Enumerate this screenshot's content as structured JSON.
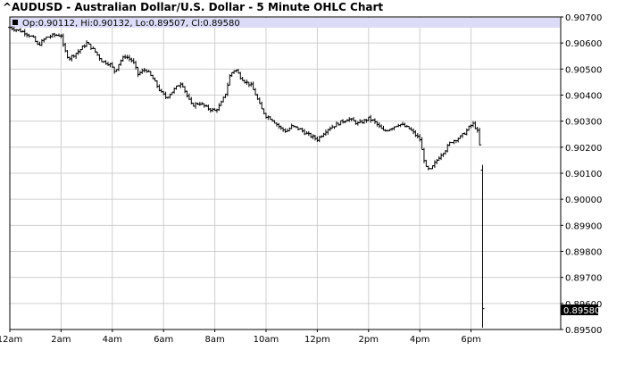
{
  "title": "^AUDUSD - Australian Dollar/U.S. Dollar - 5 Minute OHLC Chart",
  "info": "Op:0.90112, Hi:0.90132, Lo:0.89507, Cl:0.89580",
  "last_price": "0.89580",
  "colors": {
    "bar": "#000000",
    "grid": "#cfcfcf",
    "info_band": "#dcdcf8",
    "frame": "#000000"
  },
  "chart_data": {
    "type": "ohlc",
    "xlabel": "",
    "ylabel": "",
    "xlim": [
      0,
      21.5
    ],
    "ylim": [
      0.895,
      0.907
    ],
    "x_tick_labels": [
      {
        "x": 0,
        "label": "12am"
      },
      {
        "x": 2,
        "label": "2am"
      },
      {
        "x": 4,
        "label": "4am"
      },
      {
        "x": 6,
        "label": "6am"
      },
      {
        "x": 8,
        "label": "8am"
      },
      {
        "x": 10,
        "label": "10am"
      },
      {
        "x": 12,
        "label": "12pm"
      },
      {
        "x": 14,
        "label": "2pm"
      },
      {
        "x": 16,
        "label": "4pm"
      },
      {
        "x": 18,
        "label": "6pm"
      }
    ],
    "y_tick_labels": [
      "0.90700",
      "0.90600",
      "0.90500",
      "0.90400",
      "0.90300",
      "0.90200",
      "0.90100",
      "0.90000",
      "0.89900",
      "0.89800",
      "0.89700",
      "0.89600",
      "0.89500"
    ],
    "y_tick_values": [
      0.907,
      0.906,
      0.905,
      0.904,
      0.903,
      0.902,
      0.901,
      0.9,
      0.899,
      0.898,
      0.897,
      0.896,
      0.895
    ],
    "grid": true,
    "series_close_path": [
      [
        0.0,
        0.9066
      ],
      [
        0.3,
        0.9065
      ],
      [
        0.6,
        0.9064
      ],
      [
        0.9,
        0.9062
      ],
      [
        1.1,
        0.9059
      ],
      [
        1.4,
        0.9062
      ],
      [
        1.7,
        0.9063
      ],
      [
        2.0,
        0.9063
      ],
      [
        2.1,
        0.9058
      ],
      [
        2.3,
        0.9054
      ],
      [
        2.7,
        0.9057
      ],
      [
        3.0,
        0.906
      ],
      [
        3.3,
        0.9057
      ],
      [
        3.6,
        0.9053
      ],
      [
        3.9,
        0.9052
      ],
      [
        4.1,
        0.9049
      ],
      [
        4.3,
        0.9053
      ],
      [
        4.5,
        0.9055
      ],
      [
        4.8,
        0.9053
      ],
      [
        5.0,
        0.9048
      ],
      [
        5.3,
        0.905
      ],
      [
        5.6,
        0.9046
      ],
      [
        5.9,
        0.9041
      ],
      [
        6.1,
        0.9039
      ],
      [
        6.4,
        0.9042
      ],
      [
        6.7,
        0.9045
      ],
      [
        6.9,
        0.904
      ],
      [
        7.1,
        0.9036
      ],
      [
        7.4,
        0.9037
      ],
      [
        7.7,
        0.9035
      ],
      [
        8.0,
        0.9034
      ],
      [
        8.2,
        0.9036
      ],
      [
        8.4,
        0.904
      ],
      [
        8.6,
        0.9048
      ],
      [
        8.8,
        0.905
      ],
      [
        9.0,
        0.9047
      ],
      [
        9.2,
        0.9045
      ],
      [
        9.4,
        0.9044
      ],
      [
        9.6,
        0.904
      ],
      [
        9.8,
        0.9035
      ],
      [
        10.0,
        0.9032
      ],
      [
        10.2,
        0.9031
      ],
      [
        10.4,
        0.9029
      ],
      [
        10.6,
        0.9027
      ],
      [
        10.8,
        0.9026
      ],
      [
        11.0,
        0.9028
      ],
      [
        11.3,
        0.9027
      ],
      [
        11.6,
        0.9025
      ],
      [
        11.8,
        0.9024
      ],
      [
        12.0,
        0.9023
      ],
      [
        12.2,
        0.9025
      ],
      [
        12.4,
        0.9027
      ],
      [
        12.6,
        0.9028
      ],
      [
        12.8,
        0.9029
      ],
      [
        13.0,
        0.903
      ],
      [
        13.2,
        0.9031
      ],
      [
        13.4,
        0.903
      ],
      [
        13.6,
        0.9029
      ],
      [
        13.8,
        0.903
      ],
      [
        14.0,
        0.9031
      ],
      [
        14.2,
        0.903
      ],
      [
        14.4,
        0.9028
      ],
      [
        14.6,
        0.9026
      ],
      [
        14.8,
        0.9027
      ],
      [
        15.0,
        0.9028
      ],
      [
        15.2,
        0.9029
      ],
      [
        15.4,
        0.9028
      ],
      [
        15.6,
        0.9027
      ],
      [
        15.8,
        0.9025
      ],
      [
        16.0,
        0.9023
      ],
      [
        16.1,
        0.9018
      ],
      [
        16.25,
        0.9012
      ],
      [
        16.4,
        0.9011
      ],
      [
        16.6,
        0.9014
      ],
      [
        16.8,
        0.9017
      ],
      [
        17.0,
        0.9019
      ],
      [
        17.2,
        0.9022
      ],
      [
        17.4,
        0.9023
      ],
      [
        17.6,
        0.9024
      ],
      [
        17.8,
        0.9026
      ],
      [
        17.95,
        0.9028
      ],
      [
        18.1,
        0.9029
      ],
      [
        18.3,
        0.9025
      ],
      [
        18.4,
        0.9012
      ],
      [
        18.45,
        0.8958
      ]
    ]
  }
}
